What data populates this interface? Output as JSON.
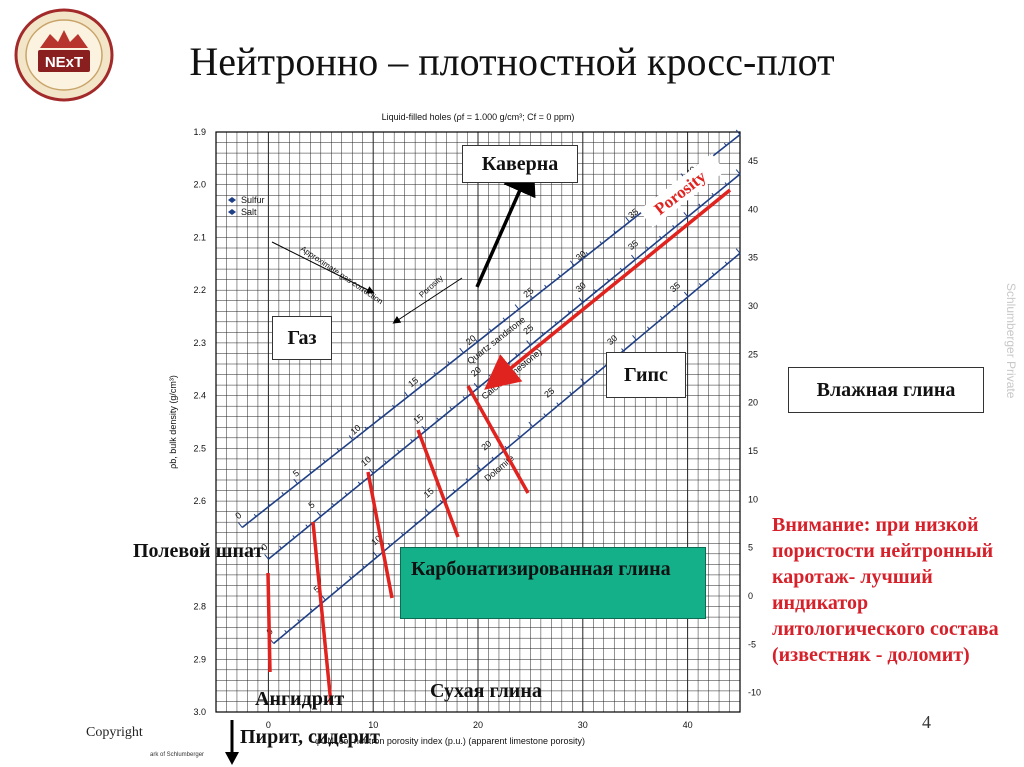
{
  "slide": {
    "title": "Нейтронно – плотностной кросс-плот",
    "logo_text": "NExT",
    "side_text": "Schlumberger Private",
    "copyright": "Copyright",
    "page_number": "4",
    "fine_print": "ark of Schlumberger"
  },
  "annotations": {
    "cavern": "Каверна",
    "gas": "Газ",
    "gypsum": "Гипс",
    "wet_clay": "Влажная глина",
    "feldspar": "Полевой шпат",
    "carbonated_clay": "Карбонатизированная глина",
    "dry_clay": "Сухая глина",
    "anhydrite": "Ангидрит",
    "pyrite": "Пирит, сидерит",
    "porosity_arrow": "Porosity",
    "note": "Внимание: при низкой пористости нейтронный каротаж- лучший индикатор литологического состава (известняк - доломит)"
  },
  "colors": {
    "note": "#d6202a",
    "grid": "#222222",
    "lines": "#1f3f86",
    "arrow_red": "#e0231f",
    "box_green": "#14b08a"
  },
  "chart_data": {
    "type": "line",
    "title": "Liquid-filled holes (ρf = 1.000 g/cm³; Cf = 0 ppm)",
    "xlabel": "φCNLcor neutron porosity index (p.u.) (apparent limestone porosity)",
    "ylabel": "ρb, bulk density (g/cm³)",
    "xlim": [
      -5,
      45
    ],
    "ylim": [
      1.9,
      3.0
    ],
    "y_inverted": true,
    "x_ticks": [
      0,
      10,
      20,
      30,
      40
    ],
    "y_ticks": [
      1.9,
      2.0,
      2.1,
      2.2,
      2.3,
      2.4,
      2.5,
      2.6,
      2.7,
      2.8,
      2.9,
      3.0
    ],
    "y_tick_labels": [
      "1.9",
      "2.0",
      "2.1",
      "2.2",
      "2.3",
      "2.4",
      "2.5",
      "2.6",
      "2.7",
      "2.8",
      "2.9",
      "3.0"
    ],
    "right_axis_label": "",
    "right_ticks": [
      -10,
      -5,
      0,
      5,
      10,
      15,
      20,
      25,
      30,
      35,
      40,
      45
    ],
    "grid": true,
    "legend": {
      "position": "top-left",
      "entries": [
        "Sulfur",
        "Salt"
      ]
    },
    "side_note": "Approximate gas correction",
    "porosity_label": "Porosity",
    "series": [
      {
        "name": "Quartz sandstone",
        "x": [
          -2.5,
          45
        ],
        "y": [
          2.65,
          1.905
        ],
        "porosity_labels": [
          "0",
          "5",
          "10",
          "15",
          "20",
          "25",
          "30",
          "35",
          "40"
        ],
        "porosity_x": [
          -2.5,
          3.0,
          8.5,
          14.0,
          19.5,
          25.0,
          30.0,
          35.0,
          40.5
        ],
        "porosity_y": [
          2.65,
          2.57,
          2.49,
          2.4,
          2.32,
          2.23,
          2.16,
          2.08,
          2.0
        ]
      },
      {
        "name": "Calcite (limestone)",
        "x": [
          0,
          45
        ],
        "y": [
          2.71,
          1.98
        ],
        "porosity_labels": [
          "0",
          "5",
          "10",
          "15",
          "20",
          "25",
          "30",
          "35"
        ],
        "porosity_x": [
          0,
          4.5,
          9.5,
          14.5,
          20,
          25,
          30,
          35
        ],
        "porosity_y": [
          2.71,
          2.63,
          2.55,
          2.47,
          2.38,
          2.3,
          2.22,
          2.14
        ]
      },
      {
        "name": "Dolomite",
        "x": [
          0.5,
          45
        ],
        "y": [
          2.87,
          2.13
        ],
        "porosity_labels": [
          "0",
          "5",
          "10",
          "15",
          "20",
          "25",
          "30",
          "35"
        ],
        "porosity_x": [
          0.5,
          5.0,
          10.5,
          15.5,
          21.0,
          27.0,
          33.0,
          39.0
        ],
        "porosity_y": [
          2.87,
          2.79,
          2.7,
          2.61,
          2.52,
          2.42,
          2.32,
          2.22
        ]
      }
    ],
    "minerals": [
      {
        "name": "Sulfur",
        "x": -3,
        "y": 2.02
      },
      {
        "name": "Salt",
        "x": -3,
        "y": 2.03
      }
    ]
  }
}
